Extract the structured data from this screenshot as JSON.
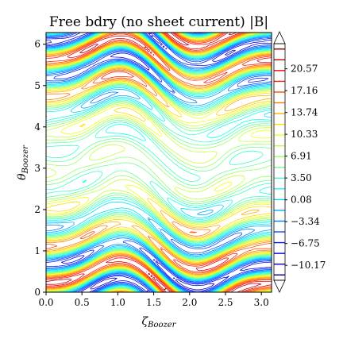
{
  "chart_data": {
    "type": "contour",
    "title": "Free bdry (no sheet current) |B|",
    "xlabel": "ζ",
    "xlabel_sub": "Boozer",
    "ylabel": "θ",
    "ylabel_sub": "Boozer",
    "xlim": [
      0,
      3.14159
    ],
    "ylim": [
      0,
      6.28319
    ],
    "x_ticks": [
      "0.0",
      "0.5",
      "1.0",
      "1.5",
      "2.0",
      "2.5",
      "3.0"
    ],
    "y_ticks": [
      "0",
      "1",
      "2",
      "3",
      "4",
      "5",
      "6"
    ],
    "colormap": "jet",
    "colorbar_range": [
      -12.5,
      24.5
    ],
    "colorbar_extend": "both",
    "colorbar_ticks": [
      "20.57",
      "17.16",
      "13.74",
      "10.33",
      "6.91",
      "3.50",
      "0.08",
      "−3.34",
      "−6.75",
      "−10.17"
    ],
    "grid": false
  }
}
